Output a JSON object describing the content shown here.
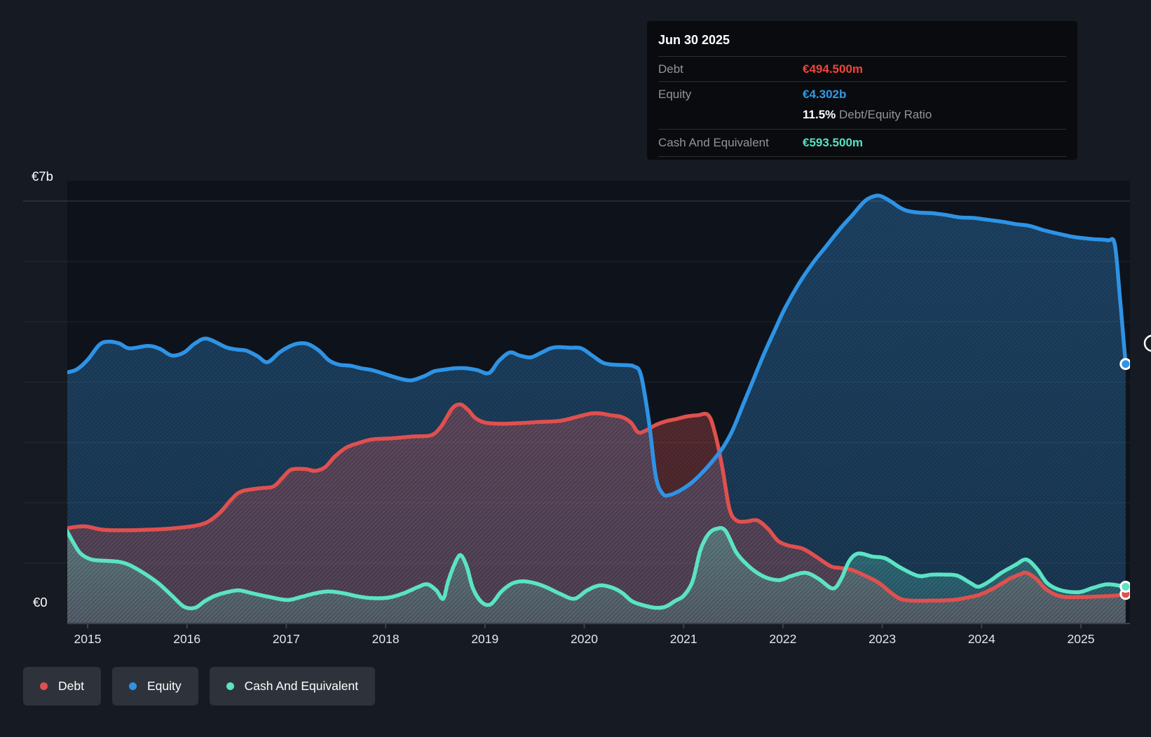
{
  "tooltip": {
    "date": "Jun 30 2025",
    "debt_label": "Debt",
    "debt_value": "€494.500m",
    "debt_color": "#ef4438",
    "equity_label": "Equity",
    "equity_value": "€4.302b",
    "equity_color": "#2f9be8",
    "ratio_value": "11.5%",
    "ratio_label": "Debt/Equity Ratio",
    "cash_label": "Cash And Equivalent",
    "cash_value": "€593.500m",
    "cash_color": "#53e2c2"
  },
  "legend": {
    "items": [
      {
        "label": "Debt",
        "color": "#e0504e"
      },
      {
        "label": "Equity",
        "color": "#2e93e5"
      },
      {
        "label": "Cash And Equivalent",
        "color": "#5be3c4"
      }
    ]
  },
  "chart_data": {
    "type": "area",
    "currency": "EUR",
    "y_top_label": "€7b",
    "y_zero_label": "€0",
    "ylim": [
      0,
      7
    ],
    "grid_interval_b": 1,
    "x_tick_labels": [
      "2015",
      "2016",
      "2017",
      "2018",
      "2019",
      "2020",
      "2021",
      "2022",
      "2023",
      "2024",
      "2025"
    ],
    "x_domain": [
      2014.79,
      2025.47
    ],
    "legend_position": "bottom-left",
    "series": [
      {
        "name": "Debt",
        "color": "#e0504e",
        "unit": "billions EUR",
        "points": [
          [
            2014.79,
            1.58
          ],
          [
            2014.97,
            1.61
          ],
          [
            2015.18,
            1.55
          ],
          [
            2015.53,
            1.55
          ],
          [
            2015.88,
            1.58
          ],
          [
            2016.16,
            1.65
          ],
          [
            2016.32,
            1.82
          ],
          [
            2016.45,
            2.06
          ],
          [
            2016.55,
            2.19
          ],
          [
            2016.73,
            2.24
          ],
          [
            2016.87,
            2.27
          ],
          [
            2016.96,
            2.41
          ],
          [
            2017.05,
            2.55
          ],
          [
            2017.19,
            2.56
          ],
          [
            2017.29,
            2.53
          ],
          [
            2017.39,
            2.59
          ],
          [
            2017.49,
            2.77
          ],
          [
            2017.61,
            2.92
          ],
          [
            2017.73,
            2.99
          ],
          [
            2017.86,
            3.05
          ],
          [
            2018.07,
            3.07
          ],
          [
            2018.28,
            3.1
          ],
          [
            2018.46,
            3.12
          ],
          [
            2018.56,
            3.27
          ],
          [
            2018.67,
            3.56
          ],
          [
            2018.75,
            3.63
          ],
          [
            2018.83,
            3.54
          ],
          [
            2018.9,
            3.41
          ],
          [
            2019.0,
            3.33
          ],
          [
            2019.16,
            3.31
          ],
          [
            2019.34,
            3.32
          ],
          [
            2019.55,
            3.34
          ],
          [
            2019.76,
            3.36
          ],
          [
            2019.94,
            3.43
          ],
          [
            2020.07,
            3.48
          ],
          [
            2020.17,
            3.48
          ],
          [
            2020.27,
            3.45
          ],
          [
            2020.38,
            3.42
          ],
          [
            2020.47,
            3.33
          ],
          [
            2020.54,
            3.17
          ],
          [
            2020.61,
            3.19
          ],
          [
            2020.72,
            3.29
          ],
          [
            2020.82,
            3.35
          ],
          [
            2020.93,
            3.39
          ],
          [
            2021.03,
            3.43
          ],
          [
            2021.14,
            3.45
          ],
          [
            2021.25,
            3.45
          ],
          [
            2021.32,
            3.13
          ],
          [
            2021.39,
            2.58
          ],
          [
            2021.46,
            1.91
          ],
          [
            2021.53,
            1.71
          ],
          [
            2021.63,
            1.69
          ],
          [
            2021.74,
            1.71
          ],
          [
            2021.85,
            1.57
          ],
          [
            2021.95,
            1.37
          ],
          [
            2022.06,
            1.29
          ],
          [
            2022.2,
            1.24
          ],
          [
            2022.34,
            1.1
          ],
          [
            2022.48,
            0.95
          ],
          [
            2022.58,
            0.92
          ],
          [
            2022.69,
            0.89
          ],
          [
            2022.83,
            0.79
          ],
          [
            2022.97,
            0.67
          ],
          [
            2023.08,
            0.52
          ],
          [
            2023.18,
            0.41
          ],
          [
            2023.29,
            0.38
          ],
          [
            2023.5,
            0.38
          ],
          [
            2023.71,
            0.39
          ],
          [
            2023.89,
            0.44
          ],
          [
            2024.0,
            0.49
          ],
          [
            2024.14,
            0.6
          ],
          [
            2024.28,
            0.74
          ],
          [
            2024.38,
            0.81
          ],
          [
            2024.45,
            0.84
          ],
          [
            2024.55,
            0.74
          ],
          [
            2024.64,
            0.58
          ],
          [
            2024.74,
            0.48
          ],
          [
            2024.84,
            0.44
          ],
          [
            2025.02,
            0.44
          ],
          [
            2025.2,
            0.45
          ],
          [
            2025.34,
            0.46
          ],
          [
            2025.45,
            0.49
          ]
        ]
      },
      {
        "name": "Equity",
        "color": "#2e93e5",
        "unit": "billions EUR",
        "points": [
          [
            2014.79,
            4.16
          ],
          [
            2014.89,
            4.21
          ],
          [
            2015.0,
            4.37
          ],
          [
            2015.12,
            4.62
          ],
          [
            2015.21,
            4.67
          ],
          [
            2015.32,
            4.64
          ],
          [
            2015.42,
            4.56
          ],
          [
            2015.61,
            4.6
          ],
          [
            2015.73,
            4.55
          ],
          [
            2015.85,
            4.44
          ],
          [
            2015.97,
            4.49
          ],
          [
            2016.08,
            4.64
          ],
          [
            2016.2,
            4.72
          ],
          [
            2016.39,
            4.58
          ],
          [
            2016.5,
            4.54
          ],
          [
            2016.6,
            4.52
          ],
          [
            2016.71,
            4.43
          ],
          [
            2016.81,
            4.33
          ],
          [
            2016.93,
            4.49
          ],
          [
            2017.03,
            4.59
          ],
          [
            2017.12,
            4.64
          ],
          [
            2017.22,
            4.63
          ],
          [
            2017.33,
            4.52
          ],
          [
            2017.43,
            4.36
          ],
          [
            2017.53,
            4.29
          ],
          [
            2017.65,
            4.27
          ],
          [
            2017.75,
            4.23
          ],
          [
            2017.86,
            4.2
          ],
          [
            2018.0,
            4.13
          ],
          [
            2018.14,
            4.06
          ],
          [
            2018.26,
            4.03
          ],
          [
            2018.39,
            4.1
          ],
          [
            2018.49,
            4.18
          ],
          [
            2018.6,
            4.21
          ],
          [
            2018.7,
            4.23
          ],
          [
            2018.81,
            4.23
          ],
          [
            2018.92,
            4.2
          ],
          [
            2019.04,
            4.15
          ],
          [
            2019.14,
            4.35
          ],
          [
            2019.25,
            4.49
          ],
          [
            2019.35,
            4.44
          ],
          [
            2019.46,
            4.41
          ],
          [
            2019.57,
            4.49
          ],
          [
            2019.66,
            4.56
          ],
          [
            2019.74,
            4.58
          ],
          [
            2019.85,
            4.57
          ],
          [
            2019.97,
            4.56
          ],
          [
            2020.08,
            4.44
          ],
          [
            2020.19,
            4.32
          ],
          [
            2020.29,
            4.29
          ],
          [
            2020.43,
            4.28
          ],
          [
            2020.5,
            4.26
          ],
          [
            2020.57,
            4.12
          ],
          [
            2020.65,
            3.36
          ],
          [
            2020.72,
            2.44
          ],
          [
            2020.79,
            2.15
          ],
          [
            2020.86,
            2.13
          ],
          [
            2020.96,
            2.2
          ],
          [
            2021.07,
            2.32
          ],
          [
            2021.17,
            2.47
          ],
          [
            2021.28,
            2.67
          ],
          [
            2021.39,
            2.9
          ],
          [
            2021.49,
            3.19
          ],
          [
            2021.6,
            3.63
          ],
          [
            2021.7,
            4.03
          ],
          [
            2021.81,
            4.47
          ],
          [
            2021.92,
            4.87
          ],
          [
            2022.02,
            5.22
          ],
          [
            2022.16,
            5.63
          ],
          [
            2022.3,
            5.97
          ],
          [
            2022.44,
            6.26
          ],
          [
            2022.58,
            6.55
          ],
          [
            2022.69,
            6.75
          ],
          [
            2022.8,
            6.96
          ],
          [
            2022.87,
            7.05
          ],
          [
            2022.97,
            7.09
          ],
          [
            2023.08,
            7.0
          ],
          [
            2023.18,
            6.89
          ],
          [
            2023.25,
            6.84
          ],
          [
            2023.36,
            6.81
          ],
          [
            2023.5,
            6.8
          ],
          [
            2023.64,
            6.77
          ],
          [
            2023.78,
            6.73
          ],
          [
            2023.92,
            6.72
          ],
          [
            2024.06,
            6.69
          ],
          [
            2024.2,
            6.66
          ],
          [
            2024.34,
            6.62
          ],
          [
            2024.48,
            6.59
          ],
          [
            2024.62,
            6.52
          ],
          [
            2024.77,
            6.46
          ],
          [
            2024.91,
            6.41
          ],
          [
            2025.0,
            6.39
          ],
          [
            2025.12,
            6.37
          ],
          [
            2025.27,
            6.35
          ],
          [
            2025.34,
            6.29
          ],
          [
            2025.39,
            5.45
          ],
          [
            2025.45,
            4.3
          ]
        ]
      },
      {
        "name": "Cash And Equivalent",
        "color": "#5be3c4",
        "unit": "billions EUR",
        "points": [
          [
            2014.79,
            1.54
          ],
          [
            2014.86,
            1.33
          ],
          [
            2014.93,
            1.16
          ],
          [
            2015.04,
            1.06
          ],
          [
            2015.18,
            1.04
          ],
          [
            2015.32,
            1.02
          ],
          [
            2015.42,
            0.97
          ],
          [
            2015.56,
            0.84
          ],
          [
            2015.71,
            0.67
          ],
          [
            2015.85,
            0.46
          ],
          [
            2015.97,
            0.28
          ],
          [
            2016.08,
            0.26
          ],
          [
            2016.18,
            0.37
          ],
          [
            2016.27,
            0.45
          ],
          [
            2016.38,
            0.51
          ],
          [
            2016.52,
            0.55
          ],
          [
            2016.66,
            0.5
          ],
          [
            2016.83,
            0.44
          ],
          [
            2017.01,
            0.39
          ],
          [
            2017.15,
            0.44
          ],
          [
            2017.29,
            0.5
          ],
          [
            2017.43,
            0.53
          ],
          [
            2017.58,
            0.5
          ],
          [
            2017.72,
            0.45
          ],
          [
            2017.86,
            0.42
          ],
          [
            2018.03,
            0.43
          ],
          [
            2018.18,
            0.5
          ],
          [
            2018.32,
            0.6
          ],
          [
            2018.42,
            0.65
          ],
          [
            2018.51,
            0.55
          ],
          [
            2018.58,
            0.41
          ],
          [
            2018.63,
            0.7
          ],
          [
            2018.71,
            1.04
          ],
          [
            2018.76,
            1.13
          ],
          [
            2018.82,
            0.93
          ],
          [
            2018.88,
            0.58
          ],
          [
            2018.97,
            0.35
          ],
          [
            2019.06,
            0.32
          ],
          [
            2019.16,
            0.52
          ],
          [
            2019.27,
            0.66
          ],
          [
            2019.38,
            0.7
          ],
          [
            2019.5,
            0.67
          ],
          [
            2019.62,
            0.6
          ],
          [
            2019.76,
            0.49
          ],
          [
            2019.9,
            0.41
          ],
          [
            2020.03,
            0.55
          ],
          [
            2020.15,
            0.63
          ],
          [
            2020.27,
            0.6
          ],
          [
            2020.38,
            0.51
          ],
          [
            2020.48,
            0.37
          ],
          [
            2020.6,
            0.3
          ],
          [
            2020.72,
            0.26
          ],
          [
            2020.82,
            0.28
          ],
          [
            2020.91,
            0.37
          ],
          [
            2021.0,
            0.46
          ],
          [
            2021.09,
            0.7
          ],
          [
            2021.17,
            1.22
          ],
          [
            2021.25,
            1.48
          ],
          [
            2021.33,
            1.57
          ],
          [
            2021.42,
            1.54
          ],
          [
            2021.53,
            1.18
          ],
          [
            2021.63,
            0.99
          ],
          [
            2021.74,
            0.84
          ],
          [
            2021.85,
            0.75
          ],
          [
            2021.97,
            0.72
          ],
          [
            2022.09,
            0.79
          ],
          [
            2022.23,
            0.84
          ],
          [
            2022.36,
            0.74
          ],
          [
            2022.5,
            0.58
          ],
          [
            2022.58,
            0.72
          ],
          [
            2022.67,
            1.04
          ],
          [
            2022.76,
            1.16
          ],
          [
            2022.9,
            1.11
          ],
          [
            2023.03,
            1.08
          ],
          [
            2023.18,
            0.93
          ],
          [
            2023.36,
            0.79
          ],
          [
            2023.5,
            0.81
          ],
          [
            2023.64,
            0.81
          ],
          [
            2023.76,
            0.79
          ],
          [
            2023.89,
            0.67
          ],
          [
            2023.97,
            0.61
          ],
          [
            2024.08,
            0.7
          ],
          [
            2024.2,
            0.84
          ],
          [
            2024.34,
            0.97
          ],
          [
            2024.45,
            1.06
          ],
          [
            2024.56,
            0.9
          ],
          [
            2024.66,
            0.67
          ],
          [
            2024.8,
            0.55
          ],
          [
            2024.98,
            0.52
          ],
          [
            2025.12,
            0.59
          ],
          [
            2025.27,
            0.65
          ],
          [
            2025.45,
            0.61
          ]
        ]
      }
    ]
  }
}
